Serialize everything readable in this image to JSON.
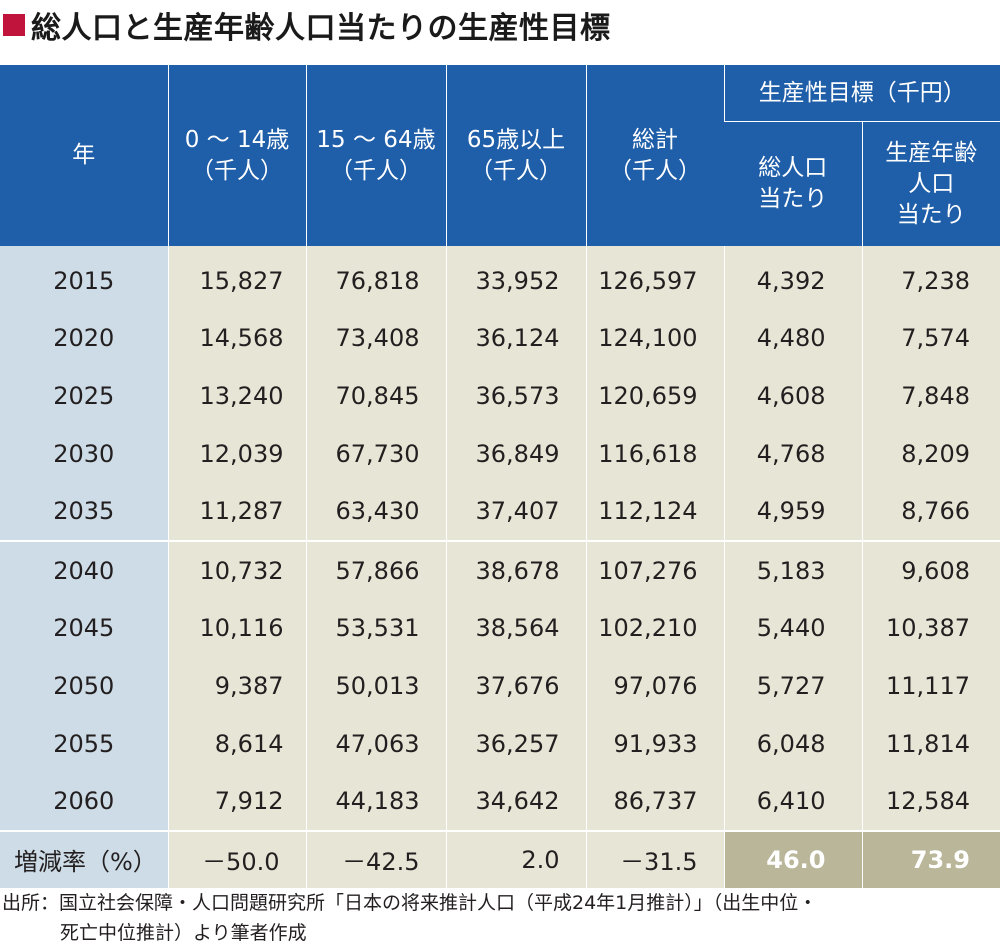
{
  "title": "総人口と生産年齢人口当たりの生産性目標",
  "headers": {
    "year": "年",
    "age0_14": [
      "0 ～ 14歳",
      "（千人）"
    ],
    "age15_64": [
      "15 ～ 64歳",
      "（千人）"
    ],
    "age65": [
      "65歳以上",
      "（千人）"
    ],
    "total": [
      "総計",
      "（千人）"
    ],
    "target_group": "生産性目標（千円）",
    "per_total": [
      "総人口",
      "当たり"
    ],
    "per_working": [
      "生産年齢",
      "人口",
      "当たり"
    ]
  },
  "rows": [
    {
      "year": "2015",
      "a": "15,827",
      "b": "76,818",
      "c": "33,952",
      "total": "126,597",
      "pt": "4,392",
      "pw": "7,238"
    },
    {
      "year": "2020",
      "a": "14,568",
      "b": "73,408",
      "c": "36,124",
      "total": "124,100",
      "pt": "4,480",
      "pw": "7,574"
    },
    {
      "year": "2025",
      "a": "13,240",
      "b": "70,845",
      "c": "36,573",
      "total": "120,659",
      "pt": "4,608",
      "pw": "7,848"
    },
    {
      "year": "2030",
      "a": "12,039",
      "b": "67,730",
      "c": "36,849",
      "total": "116,618",
      "pt": "4,768",
      "pw": "8,209"
    },
    {
      "year": "2035",
      "a": "11,287",
      "b": "63,430",
      "c": "37,407",
      "total": "112,124",
      "pt": "4,959",
      "pw": "8,766"
    },
    {
      "year": "2040",
      "a": "10,732",
      "b": "57,866",
      "c": "38,678",
      "total": "107,276",
      "pt": "5,183",
      "pw": "9,608"
    },
    {
      "year": "2045",
      "a": "10,116",
      "b": "53,531",
      "c": "38,564",
      "total": "102,210",
      "pt": "5,440",
      "pw": "10,387"
    },
    {
      "year": "2050",
      "a": "9,387",
      "b": "50,013",
      "c": "37,676",
      "total": "97,076",
      "pt": "5,727",
      "pw": "11,117"
    },
    {
      "year": "2055",
      "a": "8,614",
      "b": "47,063",
      "c": "36,257",
      "total": "91,933",
      "pt": "6,048",
      "pw": "11,814"
    },
    {
      "year": "2060",
      "a": "7,912",
      "b": "44,183",
      "c": "34,642",
      "total": "86,737",
      "pt": "6,410",
      "pw": "12,584"
    }
  ],
  "change_rate": {
    "label": "増減率（%）",
    "a": "－50.0",
    "b": "－42.5",
    "c": "2.0",
    "total": "－31.5",
    "pt": "46.0",
    "pw": "73.9"
  },
  "source": {
    "line1": "出所：国立社会保障・人口問題研究所「日本の将来推計人口（平成24年1月推計）」（出生中位・",
    "line2": "死亡中位推計）より筆者作成"
  },
  "colors": {
    "header_blue": "#1f5ea8",
    "year_col": "#cddce6",
    "cell_beige": "#e7e6d6",
    "highlight": "#b9b69a",
    "title_mark": "#c0143c"
  }
}
